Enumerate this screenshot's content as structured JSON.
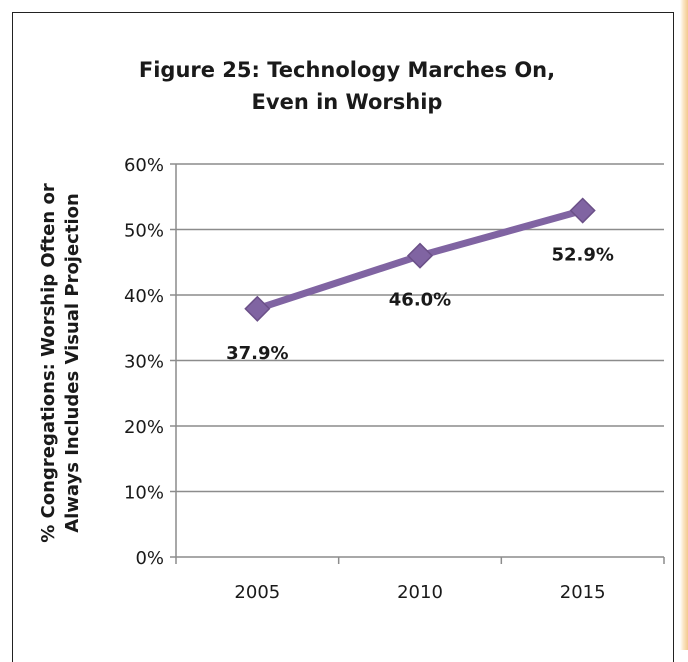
{
  "chart_data": {
    "type": "line",
    "title": [
      "Figure 25: Technology Marches On,",
      "Even in Worship"
    ],
    "ylabel": [
      "% Congregations: Worship Often or",
      "Always Includes Visual Projection"
    ],
    "xlabel": "",
    "categories": [
      "2005",
      "2010",
      "2015"
    ],
    "values": [
      37.9,
      46.0,
      52.9
    ],
    "data_labels": [
      "37.9%",
      "46.0%",
      "52.9%"
    ],
    "ylim": [
      0,
      60
    ],
    "yticks": [
      0,
      10,
      20,
      30,
      40,
      50,
      60
    ],
    "ytick_labels": [
      "0%",
      "10%",
      "20%",
      "30%",
      "40%",
      "50%",
      "60%"
    ],
    "grid": true,
    "legend": "none",
    "colors": {
      "line": "#8064a2",
      "marker": "#8064a2",
      "grid": "#8c8c8c",
      "text": "#1a1a1a"
    }
  }
}
